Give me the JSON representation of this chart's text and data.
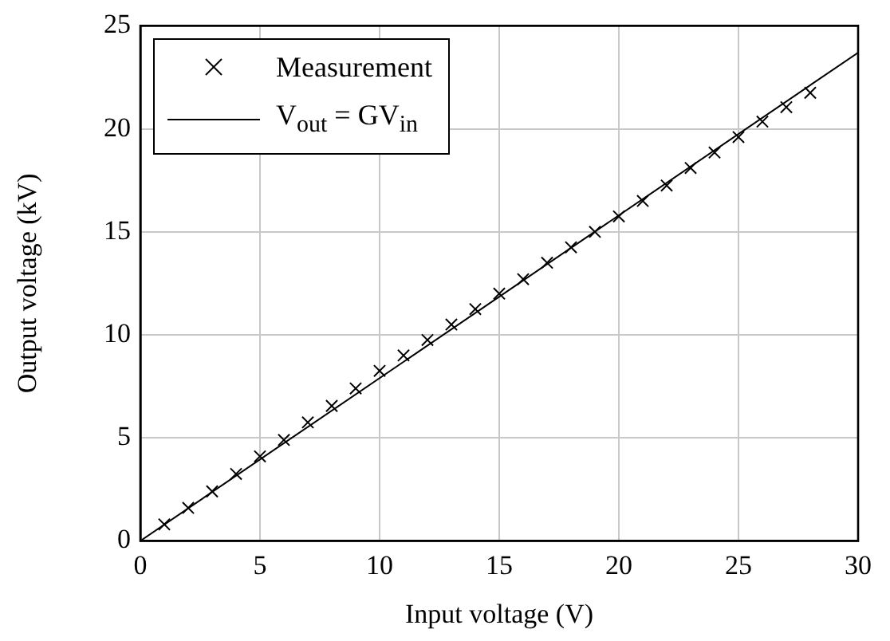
{
  "chart_data": {
    "type": "scatter",
    "xlabel": "Input voltage (V)",
    "ylabel": "Output voltage (kV)",
    "xlim": [
      0,
      30
    ],
    "ylim": [
      0,
      25
    ],
    "xticks": [
      0,
      5,
      10,
      15,
      20,
      25,
      30
    ],
    "yticks": [
      0,
      5,
      10,
      15,
      20,
      25
    ],
    "grid": true,
    "legend": "top left",
    "series": [
      {
        "name": "Measurement",
        "marker": "cross",
        "color": "#000000",
        "x": [
          1,
          2,
          3,
          4,
          5,
          6,
          7,
          8,
          9,
          10,
          11,
          12,
          13,
          14,
          15,
          16,
          17,
          18,
          19,
          20,
          21,
          22,
          23,
          24,
          25,
          26,
          27,
          28
        ],
        "values": [
          0.8,
          1.6,
          2.4,
          3.25,
          4.1,
          4.9,
          5.75,
          6.55,
          7.4,
          8.25,
          9.0,
          9.75,
          10.5,
          11.25,
          12.0,
          12.7,
          13.5,
          14.25,
          15.0,
          15.75,
          16.5,
          17.25,
          18.1,
          18.85,
          19.6,
          20.35,
          21.05,
          21.75
        ]
      },
      {
        "name": "V$_{out}$ = GV$_{in}$",
        "type": "line",
        "marker": "none",
        "color": "#000000",
        "x": [
          0,
          30
        ],
        "values": [
          0,
          23.7
        ]
      }
    ]
  }
}
